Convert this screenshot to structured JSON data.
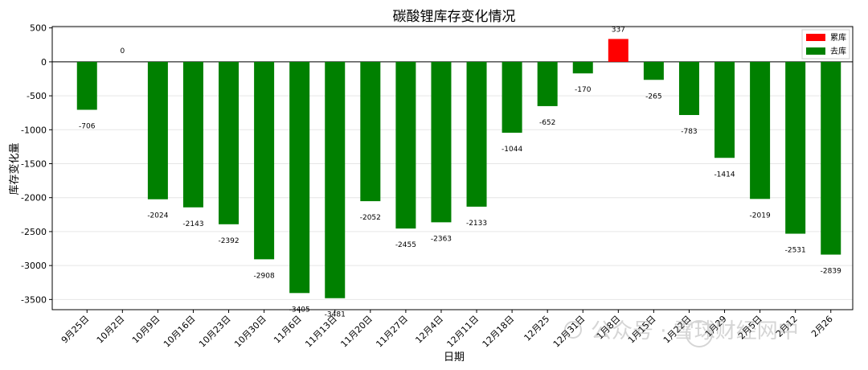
{
  "chart_data": {
    "type": "bar",
    "title": "碳酸锂库存变化情况",
    "xlabel": "日期",
    "ylabel": "库存变化量",
    "categories": [
      "9月25日",
      "10月2日",
      "10月9日",
      "10月16日",
      "10月23日",
      "10月30日",
      "11月6日",
      "11月13日",
      "11月20日",
      "11月27日",
      "12月4日",
      "12月11日",
      "12月18日",
      "12月25",
      "12月31日",
      "1月8日",
      "1月15日",
      "1月22日",
      "1月29",
      "2月5日",
      "2月12",
      "2月26"
    ],
    "values": [
      -706,
      0,
      -2024,
      -2143,
      -2392,
      -2908,
      -3405,
      -3481,
      -2052,
      -2455,
      -2363,
      -2133,
      -1044,
      -652,
      -170,
      337,
      -265,
      -783,
      -1414,
      -2019,
      -2531,
      -2839
    ],
    "ylim": [
      -3650,
      520
    ],
    "yticks": [
      500,
      0,
      -500,
      -1000,
      -1500,
      -2000,
      -2500,
      -3000,
      -3500
    ],
    "grid": true,
    "legend_position": "top-right",
    "legend": [
      {
        "name": "累库",
        "color": "#ff0000"
      },
      {
        "name": "去库",
        "color": "#008000"
      }
    ],
    "colors": {
      "positive": "#ff0000",
      "negative": "#008000"
    }
  },
  "watermark": {
    "text": "公众号 · 雪球财经网中"
  }
}
